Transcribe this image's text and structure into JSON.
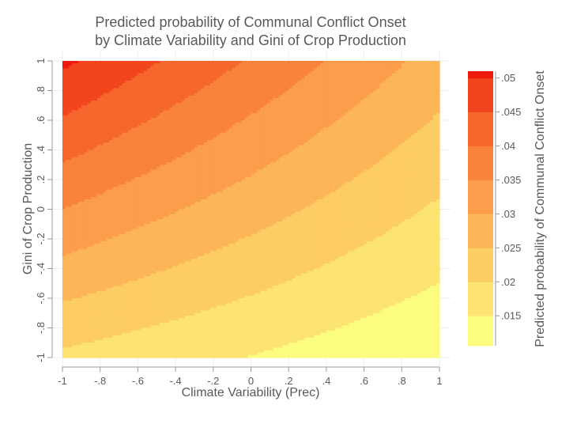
{
  "chart_data": {
    "type": "heatmap",
    "title_lines": [
      "Predicted probability of Communal Conflict Onset",
      "by Climate Variability and Gini of Crop Production"
    ],
    "xlabel": "Climate Variability (Prec)",
    "ylabel": "Gini of Crop Production",
    "zlabel": "Predicted probability of Communal Conflict Onset",
    "xlim": [
      -1,
      1
    ],
    "ylim": [
      -1,
      1
    ],
    "x_ticks": [
      {
        "value": -1,
        "label": "-1"
      },
      {
        "value": -0.8,
        "label": "-.8"
      },
      {
        "value": -0.6,
        "label": "-.6"
      },
      {
        "value": -0.4,
        "label": "-.4"
      },
      {
        "value": -0.2,
        "label": "-.2"
      },
      {
        "value": 0,
        "label": "0"
      },
      {
        "value": 0.2,
        "label": ".2"
      },
      {
        "value": 0.4,
        "label": ".4"
      },
      {
        "value": 0.6,
        "label": ".6"
      },
      {
        "value": 0.8,
        "label": ".8"
      },
      {
        "value": 1,
        "label": "1"
      }
    ],
    "y_ticks": [
      {
        "value": -1,
        "label": "-1"
      },
      {
        "value": -0.8,
        "label": "-.8"
      },
      {
        "value": -0.6,
        "label": "-.6"
      },
      {
        "value": -0.4,
        "label": "-.4"
      },
      {
        "value": -0.2,
        "label": "-.2"
      },
      {
        "value": 0,
        "label": "0"
      },
      {
        "value": 0.2,
        "label": ".2"
      },
      {
        "value": 0.4,
        "label": ".4"
      },
      {
        "value": 0.6,
        "label": ".6"
      },
      {
        "value": 0.8,
        "label": ".8"
      },
      {
        "value": 1,
        "label": "1"
      }
    ],
    "contour_breaks": [
      0.015,
      0.02,
      0.025,
      0.03,
      0.035,
      0.04,
      0.045,
      0.05
    ],
    "legend_labels": [
      {
        "value": 0.05,
        "label": ".05"
      },
      {
        "value": 0.045,
        "label": ".045"
      },
      {
        "value": 0.04,
        "label": ".04"
      },
      {
        "value": 0.035,
        "label": ".035"
      },
      {
        "value": 0.03,
        "label": ".03"
      },
      {
        "value": 0.025,
        "label": ".025"
      },
      {
        "value": 0.02,
        "label": ".02"
      },
      {
        "value": 0.015,
        "label": ".015"
      }
    ],
    "band_colors": [
      "#fcfc80",
      "#fde472",
      "#fdcd65",
      "#fcb557",
      "#fb9d4a",
      "#f9833b",
      "#f5672c",
      "#f2451d",
      "#ee1a0e"
    ],
    "surface_grid": {
      "note_free": true,
      "x": [
        -1,
        1
      ],
      "y": [
        -1,
        1
      ],
      "z": [
        [
          0.019,
          0.0106
        ],
        [
          0.051,
          0.028
        ]
      ]
    },
    "legend_position": "right",
    "grid": true
  }
}
